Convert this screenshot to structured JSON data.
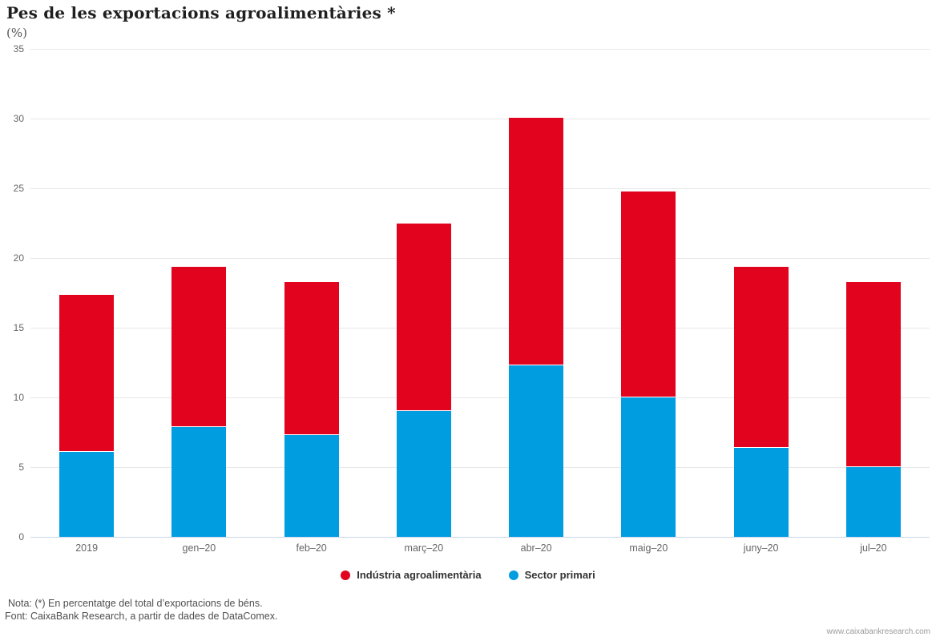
{
  "title": "Pes de les exportacions agroalimentàries *",
  "unit_label": "(%)",
  "notes": {
    "nota": "Nota: (*) En percentatge del total d’exportacions de béns.",
    "font": "Font: CaixaBank Research, a partir de dades de DataComex."
  },
  "watermark": "www.caixabankresearch.com",
  "colors": {
    "industry_red": "#e2041e",
    "primary_blue": "#009de0",
    "gridline": "#e7e7e7",
    "axis_line": "#ccd6eb",
    "tick_label": "#666666",
    "legend_text": "#333333"
  },
  "chart_data": {
    "type": "bar",
    "stacked": true,
    "title": "Pes de les exportacions agroalimentàries *",
    "ylabel": "(%)",
    "xlabel": "",
    "ylim": [
      0,
      35
    ],
    "yticks": [
      0,
      5,
      10,
      15,
      20,
      25,
      30,
      35
    ],
    "grid": true,
    "legend_position": "bottom-center",
    "categories": [
      "2019",
      "gen–20",
      "feb–20",
      "març–20",
      "abr–20",
      "maig–20",
      "juny–20",
      "jul–20"
    ],
    "series": [
      {
        "name": "Indústria agroalimentària",
        "color": "#e2041e",
        "stack_position": "top",
        "values": [
          11.2,
          11.4,
          10.9,
          13.4,
          17.7,
          14.7,
          12.9,
          13.2
        ]
      },
      {
        "name": "Sector primari",
        "color": "#009de0",
        "stack_position": "bottom",
        "values": [
          6.1,
          7.9,
          7.3,
          9.0,
          12.3,
          10.0,
          6.4,
          5.0
        ]
      }
    ],
    "totals": [
      17.3,
      19.3,
      18.2,
      22.4,
      30.0,
      24.7,
      19.3,
      18.2
    ]
  }
}
